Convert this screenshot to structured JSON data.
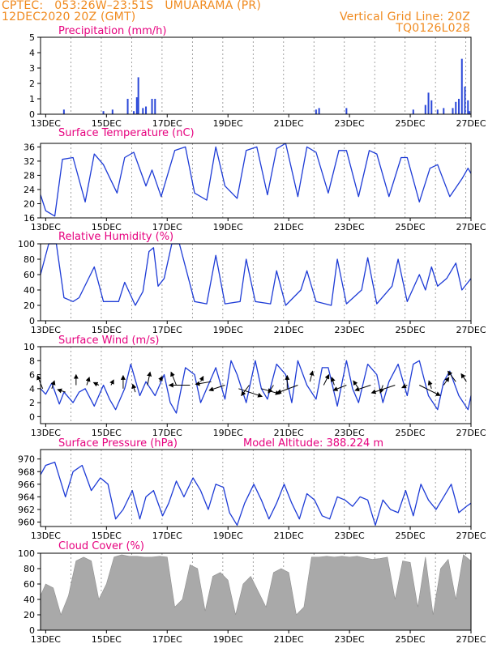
{
  "header": {
    "line1": "CPTEC:   053:26W–23:51S   UMUARAMA (PR)",
    "line2": "12DEC2020 20Z (GMT)",
    "grid_note": "Vertical Grid Line: 20Z",
    "code": "TQ0126L028"
  },
  "x_axis": {
    "days": [
      12.83,
      27.0
    ],
    "tick_days": [
      13,
      15,
      17,
      19,
      21,
      23,
      25,
      27
    ],
    "tick_labels": [
      "13DEC",
      "15DEC",
      "17DEC",
      "19DEC",
      "21DEC",
      "23DEC",
      "25DEC",
      "27DEC"
    ],
    "grid_days": [
      12.83,
      13.83,
      14.83,
      15.83,
      16.83,
      17.83,
      18.83,
      19.83,
      20.83,
      21.83,
      22.83,
      23.83,
      24.83,
      25.83,
      26.83
    ]
  },
  "colors": {
    "line": "#1d3bd6",
    "bar": "#2a47d8",
    "cloud": "#a9a9a9",
    "title": "#e6007e",
    "header": "#f08a1e"
  },
  "chart_data": [
    {
      "id": "precip",
      "type": "bar",
      "title": "Precipitation  (mm/h)",
      "ylim": [
        0,
        5
      ],
      "yticks": [
        0,
        1,
        2,
        3,
        4,
        5
      ],
      "x": [
        13.6,
        14.9,
        15.2,
        15.7,
        15.9,
        16.0,
        16.05,
        16.2,
        16.3,
        16.5,
        16.6,
        21.9,
        22.0,
        22.9,
        25.1,
        25.5,
        25.6,
        25.7,
        25.9,
        26.1,
        26.4,
        26.5,
        26.6,
        26.7,
        26.8,
        26.9,
        26.95
      ],
      "y": [
        0.3,
        0.2,
        0.3,
        1.0,
        0.2,
        1.1,
        2.4,
        0.4,
        0.5,
        1.0,
        1.0,
        0.3,
        0.4,
        0.4,
        0.3,
        0.6,
        1.4,
        0.9,
        0.3,
        0.4,
        0.4,
        0.8,
        1.0,
        3.6,
        1.8,
        0.9,
        0.2
      ]
    },
    {
      "id": "temp",
      "type": "line",
      "title": "Surface Temperature (nC)",
      "ylim": [
        16,
        37
      ],
      "yticks": [
        16,
        20,
        24,
        28,
        32,
        36
      ],
      "x": [
        12.83,
        13.0,
        13.3,
        13.55,
        13.9,
        14.3,
        14.6,
        14.9,
        15.35,
        15.6,
        15.9,
        16.3,
        16.5,
        16.8,
        17.25,
        17.6,
        17.9,
        18.3,
        18.6,
        18.9,
        19.3,
        19.6,
        19.95,
        20.3,
        20.6,
        20.9,
        21.3,
        21.6,
        21.9,
        22.3,
        22.65,
        22.9,
        23.3,
        23.65,
        23.9,
        24.3,
        24.7,
        24.9,
        25.3,
        25.65,
        25.9,
        26.3,
        26.7,
        26.9,
        27.0
      ],
      "y": [
        22.5,
        18.0,
        16.5,
        32.5,
        33.0,
        20.5,
        34.0,
        31.0,
        23.0,
        33.0,
        34.5,
        25.0,
        29.5,
        22.0,
        35.0,
        36.0,
        23.0,
        21.0,
        36.0,
        25.0,
        21.5,
        35.0,
        36.0,
        22.5,
        35.5,
        37.0,
        22.0,
        36.0,
        34.5,
        23.0,
        35.0,
        35.0,
        22.0,
        35.0,
        34.0,
        22.0,
        33.0,
        33.0,
        20.5,
        30.0,
        31.0,
        22.0,
        27.0,
        30.0,
        28.5
      ]
    },
    {
      "id": "rh",
      "type": "line",
      "title": "Relative Humidity  (%)",
      "ylim": [
        0,
        100
      ],
      "yticks": [
        0,
        20,
        40,
        60,
        80,
        100
      ],
      "x": [
        12.83,
        13.1,
        13.35,
        13.6,
        13.9,
        14.1,
        14.6,
        14.9,
        15.4,
        15.6,
        15.95,
        16.2,
        16.4,
        16.55,
        16.7,
        16.9,
        17.15,
        17.4,
        17.9,
        18.3,
        18.6,
        18.9,
        19.4,
        19.6,
        19.9,
        20.4,
        20.6,
        20.9,
        21.4,
        21.6,
        21.9,
        22.4,
        22.6,
        22.9,
        23.4,
        23.6,
        23.9,
        24.4,
        24.6,
        24.9,
        25.3,
        25.5,
        25.7,
        25.9,
        26.2,
        26.5,
        26.7,
        26.9,
        27.0
      ],
      "y": [
        60,
        100,
        100,
        30,
        25,
        30,
        70,
        25,
        25,
        50,
        20,
        38,
        90,
        95,
        45,
        55,
        100,
        100,
        25,
        22,
        85,
        22,
        25,
        80,
        25,
        22,
        65,
        20,
        40,
        65,
        25,
        20,
        80,
        22,
        40,
        82,
        22,
        45,
        80,
        25,
        60,
        40,
        70,
        45,
        55,
        75,
        40,
        50,
        55
      ]
    },
    {
      "id": "wind",
      "type": "line",
      "title": "Surface Wind (m/s)",
      "ylim": [
        -1,
        10
      ],
      "yticks": [
        0,
        2,
        4,
        6,
        8,
        10
      ],
      "x": [
        12.83,
        13.0,
        13.2,
        13.45,
        13.6,
        13.9,
        14.1,
        14.3,
        14.6,
        14.9,
        15.1,
        15.3,
        15.6,
        15.8,
        16.1,
        16.3,
        16.6,
        16.9,
        17.1,
        17.3,
        17.6,
        17.9,
        18.1,
        18.3,
        18.6,
        18.9,
        19.1,
        19.3,
        19.6,
        19.9,
        20.1,
        20.3,
        20.6,
        20.9,
        21.1,
        21.3,
        21.6,
        21.9,
        22.1,
        22.3,
        22.6,
        22.9,
        23.1,
        23.3,
        23.6,
        23.9,
        24.1,
        24.3,
        24.6,
        24.9,
        25.1,
        25.3,
        25.6,
        25.9,
        26.1,
        26.3,
        26.6,
        26.9,
        27.0
      ],
      "y": [
        4.0,
        3.2,
        4.8,
        1.8,
        3.5,
        2.0,
        3.5,
        4.0,
        1.5,
        4.5,
        2.5,
        1.0,
        4.0,
        7.5,
        3.0,
        5.0,
        3.0,
        6.0,
        2.0,
        0.5,
        7.0,
        6.0,
        2.0,
        4.0,
        7.0,
        2.5,
        8.0,
        6.0,
        2.0,
        8.0,
        4.0,
        2.5,
        7.5,
        6.0,
        2.0,
        8.0,
        4.5,
        2.5,
        7.0,
        7.0,
        1.5,
        8.0,
        4.0,
        2.0,
        7.5,
        6.0,
        2.0,
        5.0,
        7.5,
        3.0,
        7.5,
        8.0,
        3.0,
        1.0,
        5.0,
        6.5,
        3.0,
        1.0,
        3.0
      ],
      "vectors": {
        "x": [
          12.9,
          13.2,
          13.65,
          14.0,
          14.35,
          14.75,
          15.15,
          15.55,
          15.95,
          16.35,
          16.75,
          17.3,
          17.75,
          18.1,
          18.45,
          18.9,
          19.35,
          19.7,
          20.1,
          20.5,
          20.95,
          21.3,
          21.7,
          22.15,
          22.5,
          22.9,
          23.3,
          23.7,
          24.1,
          24.5,
          24.9,
          25.3,
          25.7,
          26.1,
          26.5,
          26.85
        ],
        "y": [
          4.0,
          4.0,
          3.5,
          4.5,
          4.5,
          4.5,
          4.5,
          4.0,
          3.5,
          4.5,
          5.0,
          4.5,
          4.5,
          5.0,
          5.0,
          4.5,
          4.0,
          4.5,
          4.0,
          4.5,
          4.0,
          4.5,
          5.0,
          4.5,
          4.5,
          4.5,
          4.0,
          4.5,
          4.5,
          4.5,
          4.5,
          4.5,
          4.0,
          4.5,
          5.0,
          5.0
        ],
        "u": [
          -2,
          1,
          -3,
          0,
          1,
          -2,
          1,
          0,
          -1,
          1,
          1,
          -2,
          -8,
          1,
          -6,
          -6,
          9,
          -3,
          7,
          -2,
          0,
          -8,
          1,
          2,
          -1,
          -5,
          -2,
          -6,
          -1,
          -9,
          -2,
          8,
          -1,
          2,
          -3,
          -2
        ],
        "v": [
          5,
          3,
          1,
          4,
          3,
          1,
          2,
          5,
          3,
          5,
          2,
          5,
          0,
          2,
          -1,
          -2,
          -3,
          -4,
          -2,
          -3,
          5,
          -3,
          4,
          4,
          3,
          -2,
          3,
          -2,
          -3,
          -3,
          -1,
          -4,
          3,
          3,
          4,
          3
        ]
      }
    },
    {
      "id": "pres",
      "type": "line",
      "title": "Surface Pressure (hPa)",
      "annotation": "Model Altitude: 388.224  m",
      "ylim": [
        959.3,
        971.5
      ],
      "yticks": [
        960,
        962,
        964,
        966,
        968,
        970
      ],
      "x": [
        12.83,
        13.0,
        13.3,
        13.65,
        13.9,
        14.2,
        14.5,
        14.8,
        15.05,
        15.3,
        15.55,
        15.85,
        16.1,
        16.3,
        16.55,
        16.85,
        17.05,
        17.3,
        17.55,
        17.85,
        18.1,
        18.35,
        18.6,
        18.85,
        19.05,
        19.3,
        19.55,
        19.85,
        20.1,
        20.35,
        20.6,
        20.85,
        21.1,
        21.35,
        21.6,
        21.85,
        22.1,
        22.35,
        22.6,
        22.85,
        23.1,
        23.35,
        23.6,
        23.85,
        24.1,
        24.35,
        24.6,
        24.85,
        25.1,
        25.35,
        25.6,
        25.85,
        26.1,
        26.35,
        26.6,
        26.85,
        27.0
      ],
      "y": [
        967.5,
        969.0,
        969.5,
        964.0,
        968.0,
        969.0,
        965.0,
        967.0,
        966.0,
        960.5,
        962.0,
        965.0,
        960.5,
        964.0,
        965.0,
        961.0,
        963.0,
        966.5,
        964.0,
        967.0,
        965.0,
        962.0,
        966.0,
        965.5,
        961.5,
        959.5,
        963.0,
        966.0,
        963.5,
        960.5,
        963.0,
        966.0,
        963.0,
        960.5,
        964.5,
        963.5,
        961.0,
        960.5,
        964.0,
        963.5,
        962.5,
        964.0,
        963.5,
        959.5,
        963.5,
        962.0,
        961.5,
        965.0,
        961.0,
        966.0,
        963.5,
        962.0,
        964.0,
        966.0,
        961.5,
        962.5,
        963.0
      ]
    },
    {
      "id": "cloud",
      "type": "area",
      "title": "Cloud Cover (%)",
      "ylim": [
        0,
        100
      ],
      "yticks": [
        0,
        20,
        40,
        60,
        80,
        100
      ],
      "x": [
        12.83,
        13.0,
        13.25,
        13.5,
        13.75,
        14.0,
        14.25,
        14.5,
        14.75,
        15.0,
        15.25,
        15.5,
        15.75,
        16.0,
        16.25,
        16.5,
        16.75,
        17.0,
        17.25,
        17.5,
        17.75,
        18.0,
        18.25,
        18.5,
        18.75,
        19.0,
        19.25,
        19.5,
        19.75,
        20.0,
        20.25,
        20.5,
        20.75,
        21.0,
        21.25,
        21.5,
        21.75,
        22.0,
        22.25,
        22.5,
        22.75,
        23.0,
        23.25,
        23.5,
        23.75,
        24.0,
        24.25,
        24.5,
        24.75,
        25.0,
        25.25,
        25.5,
        25.75,
        26.0,
        26.25,
        26.5,
        26.75,
        27.0
      ],
      "y": [
        45,
        60,
        55,
        20,
        45,
        90,
        95,
        90,
        40,
        60,
        95,
        98,
        96,
        96,
        95,
        95,
        96,
        95,
        30,
        40,
        85,
        80,
        25,
        70,
        75,
        65,
        20,
        60,
        70,
        50,
        30,
        75,
        80,
        75,
        20,
        30,
        95,
        95,
        96,
        95,
        96,
        95,
        96,
        94,
        92,
        93,
        95,
        40,
        90,
        88,
        30,
        95,
        20,
        80,
        92,
        40,
        98,
        90
      ]
    }
  ]
}
